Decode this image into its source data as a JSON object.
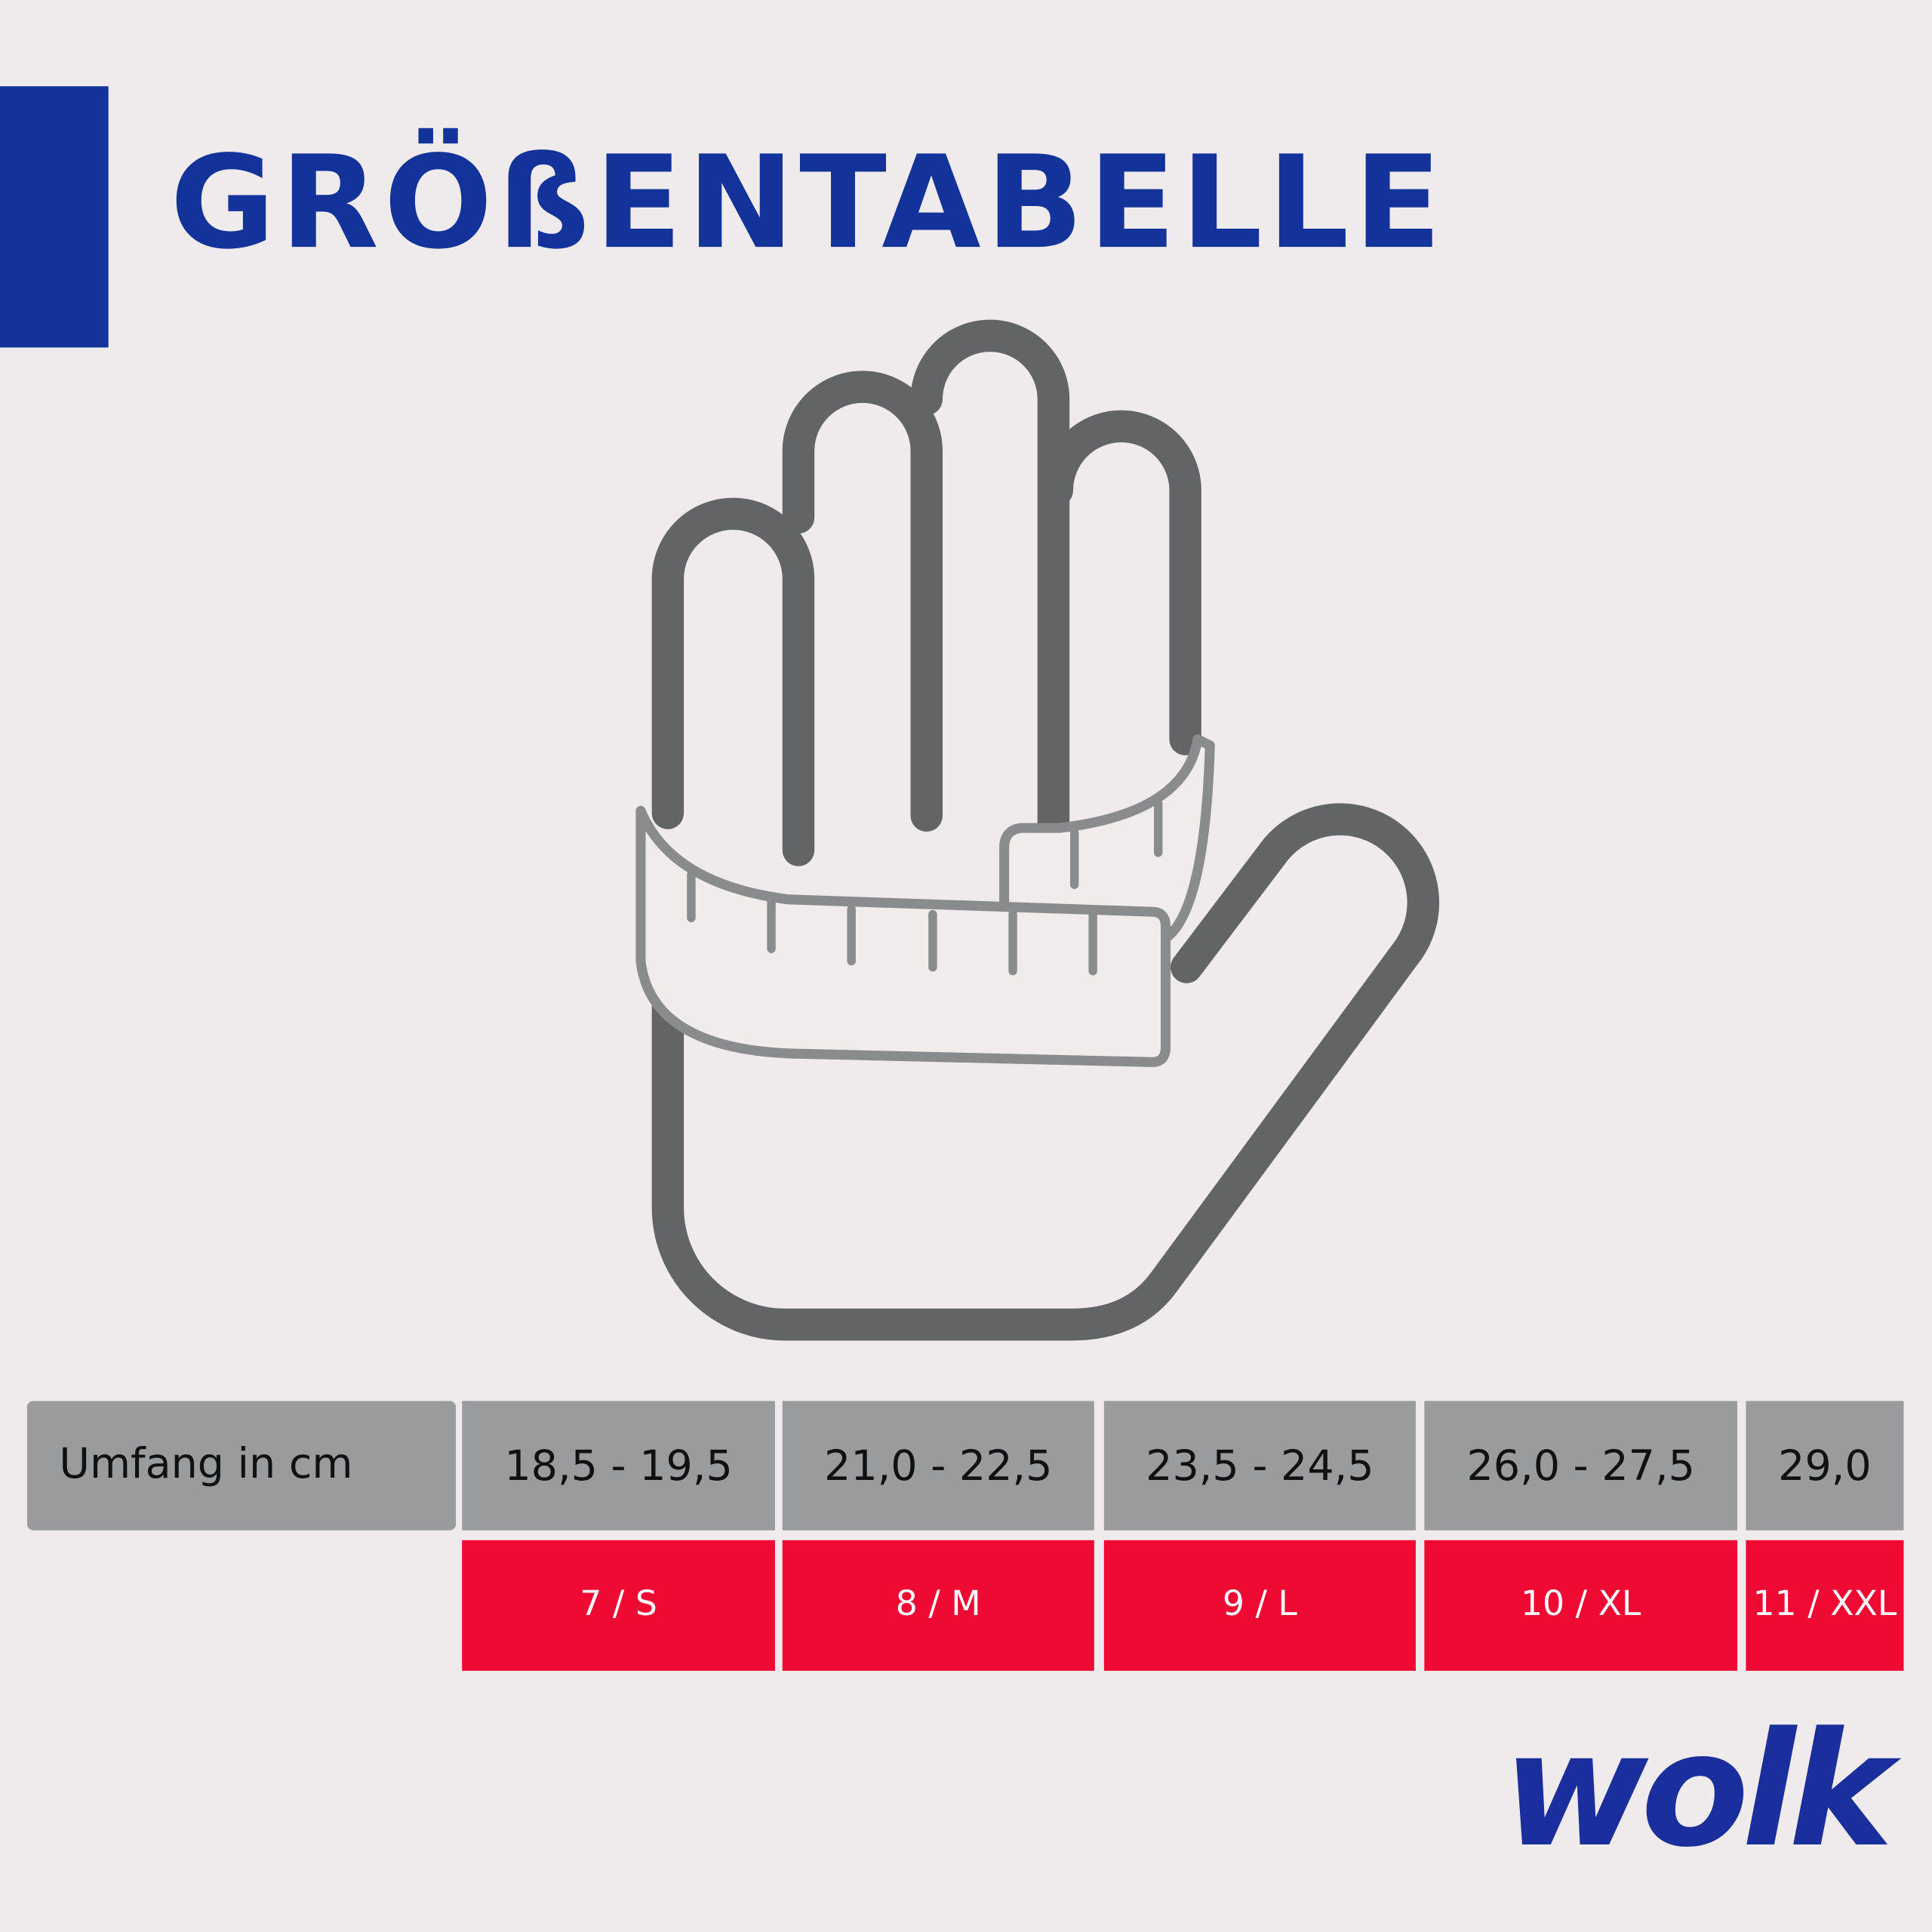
{
  "header": {
    "title": "GRÖßENTABELLE"
  },
  "table": {
    "header_label": "Umfang in cm",
    "columns": [
      {
        "circumference": "18,5 - 19,5",
        "size": "7 / S"
      },
      {
        "circumference": "21,0 - 22,5",
        "size": "8 / M"
      },
      {
        "circumference": "23,5 - 24,5",
        "size": "9 / L"
      },
      {
        "circumference": "26,0 - 27,5",
        "size": "10 / XL"
      },
      {
        "circumference": "29,0",
        "size": "11 / XXL"
      }
    ]
  },
  "brand": "wolk"
}
